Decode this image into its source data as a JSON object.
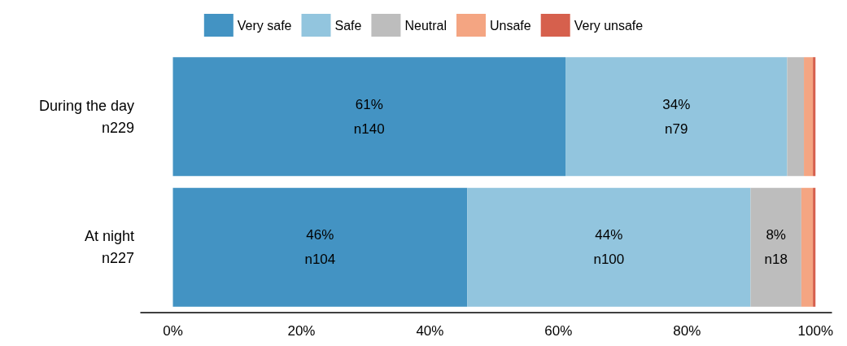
{
  "chart_data": {
    "type": "bar",
    "orientation": "horizontal",
    "stacked": true,
    "categories": [
      "During the day\nn229",
      "At night\nn227"
    ],
    "series": [
      {
        "name": "Very safe",
        "color": "#4393c3",
        "values": [
          61.1,
          45.8
        ],
        "value_labels": [
          "61%\nn140",
          "46%\nn104"
        ]
      },
      {
        "name": "Safe",
        "color": "#92c5de",
        "values": [
          34.5,
          44.1
        ],
        "value_labels": [
          "34%\nn79",
          "44%\nn100"
        ]
      },
      {
        "name": "Neutral",
        "color": "#bdbdbd",
        "values": [
          2.6,
          7.9
        ],
        "value_labels": [
          null,
          "8%\nn18"
        ]
      },
      {
        "name": "Unsafe",
        "color": "#f4a582",
        "values": [
          1.4,
          1.8
        ],
        "value_labels": [
          null,
          null
        ]
      },
      {
        "name": "Very unsafe",
        "color": "#d6604d",
        "values": [
          0.4,
          0.4
        ],
        "value_labels": [
          null,
          null
        ]
      }
    ],
    "xlim": [
      -5,
      102.5
    ],
    "xticks": [
      {
        "value": 0,
        "label": "0%"
      },
      {
        "value": 20,
        "label": "20%"
      },
      {
        "value": 40,
        "label": "40%"
      },
      {
        "value": 60,
        "label": "60%"
      },
      {
        "value": 80,
        "label": "80%"
      },
      {
        "value": 100,
        "label": "100%"
      }
    ],
    "grid": false,
    "legend": "top"
  }
}
